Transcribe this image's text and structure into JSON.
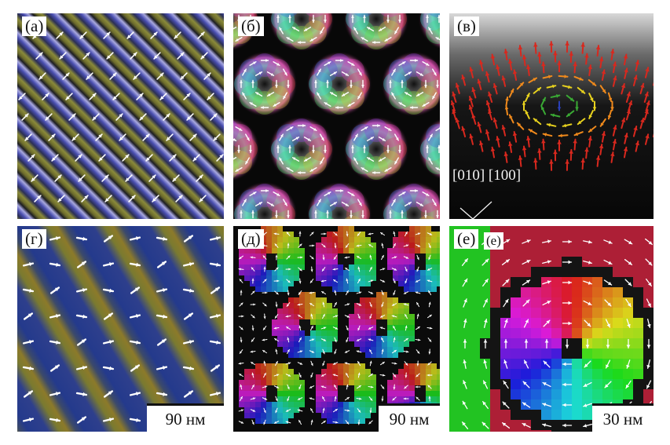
{
  "panels": [
    {
      "id": "a",
      "label": "(а)"
    },
    {
      "id": "b",
      "label": "(б)"
    },
    {
      "id": "c",
      "label": "(в)"
    },
    {
      "id": "d",
      "label": "(г)"
    },
    {
      "id": "e",
      "label": "(д)"
    },
    {
      "id": "f",
      "label": "(е)"
    }
  ],
  "scale_bars": {
    "d": "90 нм",
    "e": "90 нм",
    "f": "30 нм"
  },
  "inset_labels": {
    "f_small": "(е)"
  },
  "axes": {
    "label": "[010] [100]"
  },
  "colors": {
    "stripe_blue": "#4a4fb0",
    "stripe_olive": "#8a8a3a",
    "skyrmion_magenta": "#d63a9a",
    "skyrmion_green": "#3fc04a",
    "arrow_white": "#ffffff",
    "arrow_red": "#d8281e",
    "arrow_orange": "#f08a1c",
    "arrow_yellow": "#e8d21e",
    "arrow_green": "#3aaa34",
    "arrow_blue": "#2a3fb6"
  }
}
